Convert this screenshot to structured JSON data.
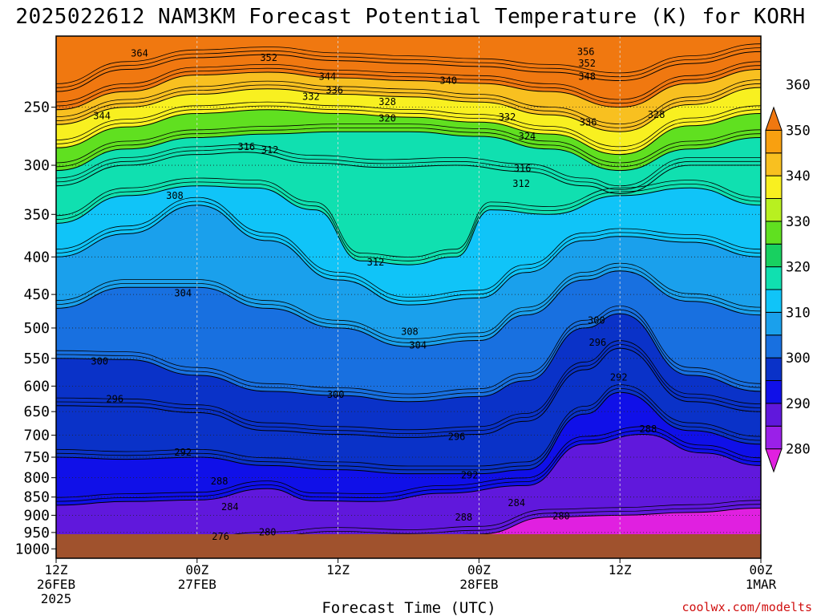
{
  "chart_data": {
    "type": "heatmap",
    "subtype": "filled-contour time-height cross section",
    "title": "2025022612 NAM3KM Forecast Potential Temperature (K) for KORH",
    "xlabel": "Forecast Time (UTC)",
    "ylabel": "",
    "credit": "coolwx.com/modelts",
    "y_axis": {
      "scale": "log-pressure, inverted",
      "range": [
        1030,
        200
      ],
      "ticks": [
        "250",
        "300",
        "350",
        "400",
        "450",
        "500",
        "550",
        "600",
        "650",
        "700",
        "750",
        "800",
        "850",
        "900",
        "950",
        "1000"
      ],
      "tick_values": [
        250,
        300,
        350,
        400,
        450,
        500,
        550,
        600,
        650,
        700,
        750,
        800,
        850,
        900,
        950,
        1000
      ]
    },
    "x_axis": {
      "range_hours": [
        0,
        60
      ],
      "ticks": [
        {
          "hour": 0,
          "line1": "12Z",
          "line2": "26FEB",
          "line3": "2025"
        },
        {
          "hour": 12,
          "line1": "00Z",
          "line2": "27FEB",
          "line3": ""
        },
        {
          "hour": 24,
          "line1": "12Z",
          "line2": "",
          "line3": ""
        },
        {
          "hour": 36,
          "line1": "00Z",
          "line2": "28FEB",
          "line3": ""
        },
        {
          "hour": 48,
          "line1": "12Z",
          "line2": "",
          "line3": ""
        },
        {
          "hour": 60,
          "line1": "00Z",
          "line2": "1MAR",
          "line3": ""
        }
      ]
    },
    "colorbar": {
      "ticks": [
        "280",
        "290",
        "300",
        "310",
        "320",
        "330",
        "340",
        "350",
        "360"
      ],
      "tick_values": [
        280,
        290,
        300,
        310,
        320,
        330,
        340,
        350,
        360
      ],
      "colors": [
        "#e020e0",
        "#9a20e8",
        "#6018dc",
        "#1010e8",
        "#0a32c8",
        "#1870e0",
        "#1aa0ec",
        "#10c4f8",
        "#10e0b0",
        "#18d060",
        "#60e020",
        "#b8f020",
        "#f8f020",
        "#f8c020",
        "#f8a010",
        "#f07810"
      ]
    },
    "grid": true,
    "ground_color": "#a0522d",
    "isotherms_K": [
      {
        "value": 280,
        "points": [
          [
            6,
            982
          ],
          [
            12,
            988
          ],
          [
            18,
            972
          ],
          [
            24,
            958
          ],
          [
            30,
            965
          ],
          [
            36,
            955
          ],
          [
            42,
            905
          ],
          [
            48,
            900
          ],
          [
            54,
            892
          ],
          [
            60,
            880
          ]
        ]
      },
      {
        "value": 288,
        "points": [
          [
            0,
            872
          ],
          [
            6,
            862
          ],
          [
            12,
            858
          ],
          [
            18,
            828
          ],
          [
            22,
            860
          ],
          [
            27,
            862
          ],
          [
            33,
            840
          ],
          [
            40,
            820
          ],
          [
            45,
            720
          ],
          [
            50,
            698
          ],
          [
            55,
            740
          ],
          [
            60,
            770
          ]
        ]
      },
      {
        "value": 292,
        "points": [
          [
            0,
            750
          ],
          [
            6,
            755
          ],
          [
            12,
            750
          ],
          [
            18,
            770
          ],
          [
            24,
            780
          ],
          [
            30,
            790
          ],
          [
            36,
            790
          ],
          [
            40,
            780
          ],
          [
            45,
            655
          ],
          [
            48,
            612
          ],
          [
            54,
            690
          ],
          [
            60,
            720
          ]
        ]
      },
      {
        "value": 296,
        "points": [
          [
            0,
            638
          ],
          [
            6,
            640
          ],
          [
            12,
            652
          ],
          [
            18,
            690
          ],
          [
            24,
            698
          ],
          [
            30,
            705
          ],
          [
            36,
            698
          ],
          [
            40,
            670
          ],
          [
            45,
            570
          ],
          [
            48,
            533
          ],
          [
            54,
            630
          ],
          [
            60,
            650
          ]
        ]
      },
      {
        "value": 300,
        "points": [
          [
            0,
            550
          ],
          [
            6,
            552
          ],
          [
            12,
            580
          ],
          [
            18,
            610
          ],
          [
            24,
            618
          ],
          [
            30,
            630
          ],
          [
            36,
            620
          ],
          [
            40,
            590
          ],
          [
            45,
            500
          ],
          [
            48,
            478
          ],
          [
            54,
            580
          ],
          [
            60,
            610
          ]
        ]
      },
      {
        "value": 304,
        "points": [
          [
            0,
            470
          ],
          [
            6,
            440
          ],
          [
            12,
            440
          ],
          [
            18,
            470
          ],
          [
            24,
            500
          ],
          [
            30,
            530
          ],
          [
            36,
            520
          ],
          [
            40,
            480
          ],
          [
            45,
            430
          ],
          [
            48,
            418
          ],
          [
            54,
            460
          ],
          [
            60,
            480
          ]
        ]
      },
      {
        "value": 308,
        "points": [
          [
            0,
            400
          ],
          [
            6,
            372
          ],
          [
            12,
            340
          ],
          [
            18,
            380
          ],
          [
            24,
            430
          ],
          [
            30,
            465
          ],
          [
            36,
            455
          ],
          [
            40,
            420
          ],
          [
            45,
            380
          ],
          [
            48,
            375
          ],
          [
            54,
            382
          ],
          [
            60,
            400
          ]
        ]
      },
      {
        "value": 312,
        "points": [
          [
            0,
            360
          ],
          [
            6,
            330
          ],
          [
            12,
            320
          ],
          [
            17,
            322
          ],
          [
            22,
            345
          ],
          [
            26,
            405
          ],
          [
            30,
            410
          ],
          [
            34,
            400
          ],
          [
            37,
            345
          ],
          [
            42,
            350
          ],
          [
            48,
            330
          ],
          [
            54,
            322
          ],
          [
            60,
            340
          ]
        ]
      },
      {
        "value": 316,
        "points": [
          [
            0,
            320
          ],
          [
            6,
            300
          ],
          [
            12,
            290
          ],
          [
            16,
            288
          ],
          [
            22,
            298
          ],
          [
            28,
            302
          ],
          [
            34,
            300
          ],
          [
            40,
            306
          ],
          [
            45,
            320
          ],
          [
            48,
            328
          ],
          [
            54,
            300
          ],
          [
            60,
            300
          ]
        ]
      },
      {
        "value": 320,
        "points": [
          [
            0,
            305
          ],
          [
            6,
            285
          ],
          [
            12,
            275
          ],
          [
            18,
            272
          ],
          [
            24,
            270
          ],
          [
            30,
            270
          ],
          [
            36,
            274
          ],
          [
            42,
            285
          ],
          [
            48,
            305
          ],
          [
            54,
            285
          ],
          [
            60,
            275
          ]
        ]
      },
      {
        "value": 328,
        "points": [
          [
            0,
            284
          ],
          [
            6,
            266
          ],
          [
            12,
            255
          ],
          [
            18,
            252
          ],
          [
            24,
            255
          ],
          [
            30,
            258
          ],
          [
            36,
            262
          ],
          [
            42,
            272
          ],
          [
            48,
            290
          ],
          [
            54,
            265
          ],
          [
            60,
            255
          ]
        ]
      },
      {
        "value": 336,
        "points": [
          [
            0,
            264
          ],
          [
            6,
            250
          ],
          [
            12,
            240
          ],
          [
            18,
            236
          ],
          [
            24,
            240
          ],
          [
            30,
            242
          ],
          [
            36,
            246
          ],
          [
            42,
            256
          ],
          [
            48,
            270
          ],
          [
            54,
            248
          ],
          [
            60,
            235
          ]
        ]
      },
      {
        "value": 344,
        "points": [
          [
            0,
            252
          ],
          [
            6,
            238
          ],
          [
            12,
            226
          ],
          [
            18,
            224
          ],
          [
            24,
            228
          ],
          [
            30,
            230
          ],
          [
            36,
            232
          ],
          [
            42,
            238
          ],
          [
            48,
            250
          ],
          [
            54,
            232
          ],
          [
            60,
            222
          ]
        ]
      },
      {
        "value": 352,
        "points": [
          [
            0,
            238
          ],
          [
            6,
            222
          ],
          [
            12,
            214
          ],
          [
            18,
            212
          ],
          [
            24,
            216
          ],
          [
            30,
            218
          ],
          [
            36,
            220
          ],
          [
            42,
            224
          ],
          [
            48,
            230
          ],
          [
            54,
            218
          ],
          [
            60,
            210
          ]
        ]
      }
    ],
    "contour_labels": [
      {
        "text": "364",
        "hour": 7.1,
        "p": 211
      },
      {
        "text": "352",
        "hour": 18.1,
        "p": 214
      },
      {
        "text": "344",
        "hour": 23.1,
        "p": 227
      },
      {
        "text": "336",
        "hour": 23.7,
        "p": 237
      },
      {
        "text": "332",
        "hour": 21.7,
        "p": 242
      },
      {
        "text": "340",
        "hour": 33.4,
        "p": 230
      },
      {
        "text": "328",
        "hour": 28.2,
        "p": 246
      },
      {
        "text": "320",
        "hour": 28.2,
        "p": 259
      },
      {
        "text": "344",
        "hour": 3.9,
        "p": 257
      },
      {
        "text": "356",
        "hour": 45.1,
        "p": 210
      },
      {
        "text": "352",
        "hour": 45.2,
        "p": 218
      },
      {
        "text": "348",
        "hour": 45.2,
        "p": 227
      },
      {
        "text": "332",
        "hour": 38.4,
        "p": 258
      },
      {
        "text": "336",
        "hour": 45.3,
        "p": 262
      },
      {
        "text": "328",
        "hour": 51.1,
        "p": 256
      },
      {
        "text": "324",
        "hour": 40.1,
        "p": 274
      },
      {
        "text": "316",
        "hour": 16.2,
        "p": 283
      },
      {
        "text": "312",
        "hour": 18.2,
        "p": 286
      },
      {
        "text": "316",
        "hour": 39.7,
        "p": 303
      },
      {
        "text": "312",
        "hour": 39.6,
        "p": 318
      },
      {
        "text": "308",
        "hour": 10.1,
        "p": 330
      },
      {
        "text": "312",
        "hour": 27.2,
        "p": 407
      },
      {
        "text": "304",
        "hour": 10.8,
        "p": 448
      },
      {
        "text": "308",
        "hour": 30.1,
        "p": 506
      },
      {
        "text": "304",
        "hour": 30.8,
        "p": 528
      },
      {
        "text": "300",
        "hour": 46.0,
        "p": 488
      },
      {
        "text": "296",
        "hour": 46.1,
        "p": 523
      },
      {
        "text": "292",
        "hour": 47.9,
        "p": 584
      },
      {
        "text": "300",
        "hour": 3.7,
        "p": 555
      },
      {
        "text": "296",
        "hour": 5.0,
        "p": 625
      },
      {
        "text": "300",
        "hour": 23.8,
        "p": 616
      },
      {
        "text": "292",
        "hour": 10.8,
        "p": 739
      },
      {
        "text": "296",
        "hour": 34.1,
        "p": 703
      },
      {
        "text": "288",
        "hour": 50.4,
        "p": 687
      },
      {
        "text": "288",
        "hour": 13.9,
        "p": 809
      },
      {
        "text": "292",
        "hour": 35.2,
        "p": 794
      },
      {
        "text": "284",
        "hour": 14.8,
        "p": 877
      },
      {
        "text": "284",
        "hour": 39.2,
        "p": 866
      },
      {
        "text": "288",
        "hour": 34.7,
        "p": 906
      },
      {
        "text": "280",
        "hour": 43.0,
        "p": 902
      },
      {
        "text": "280",
        "hour": 18.0,
        "p": 949
      },
      {
        "text": "276",
        "hour": 14.0,
        "p": 962
      }
    ]
  }
}
